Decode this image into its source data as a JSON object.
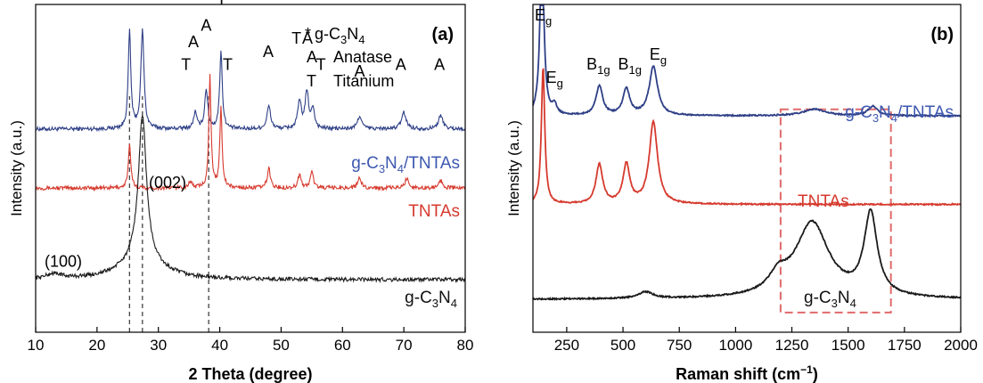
{
  "chart_data": [
    {
      "panel": "(a)",
      "type": "line",
      "xlabel": "2 Theta (degree)",
      "ylabel": "Intensity (a.u.)",
      "xlim": [
        10,
        80
      ],
      "x_ticks": [
        10,
        20,
        30,
        40,
        50,
        60,
        70,
        80
      ],
      "legend": {
        "star_prefix": "*",
        "star_main": "g-C",
        "star_sub1": "3",
        "star_mid": "N",
        "star_sub2": "4",
        "a_symbol": "A",
        "a_label": "Anatase",
        "t_symbol": "T",
        "t_label": "Titanium"
      },
      "series": [
        {
          "name": "g-C3N4/TNTAs",
          "label_parts": [
            "g-C",
            "3",
            "N",
            "4",
            "/TNTAs"
          ],
          "color": "#2e3f86",
          "label_color": "#3d58b0",
          "baseline": 0.62,
          "peaks": [
            [
              25.3,
              0.3,
              0.25
            ],
            [
              27.4,
              0.3,
              0.3
            ],
            [
              36.0,
              0.05,
              0.3
            ],
            [
              37.8,
              0.12,
              0.3
            ],
            [
              40.2,
              0.24,
              0.25
            ],
            [
              48.0,
              0.07,
              0.35
            ],
            [
              53.0,
              0.08,
              0.35
            ],
            [
              54.2,
              0.11,
              0.35
            ],
            [
              55.2,
              0.06,
              0.3
            ],
            [
              62.8,
              0.04,
              0.4
            ],
            [
              70.0,
              0.05,
              0.45
            ],
            [
              76.0,
              0.04,
              0.45
            ]
          ]
        },
        {
          "name": "TNTAs",
          "label_parts": [
            "TNTAs"
          ],
          "color": "#d63a2e",
          "label_color": "#d63a2e",
          "baseline": 0.44,
          "peaks": [
            [
              25.3,
              0.13,
              0.25
            ],
            [
              35.2,
              0.02,
              0.3
            ],
            [
              38.4,
              0.34,
              0.22
            ],
            [
              40.2,
              0.25,
              0.22
            ],
            [
              48.0,
              0.06,
              0.3
            ],
            [
              53.0,
              0.04,
              0.3
            ],
            [
              55.0,
              0.05,
              0.3
            ],
            [
              62.8,
              0.03,
              0.35
            ],
            [
              70.5,
              0.03,
              0.35
            ],
            [
              76.0,
              0.025,
              0.35
            ]
          ]
        },
        {
          "name": "g-C3N4",
          "label_parts": [
            "g-C",
            "3",
            "N",
            "4"
          ],
          "color": "#1a1a1a",
          "label_color": "#111111",
          "baseline": 0.16,
          "peaks": [
            [
              13.0,
              0.015,
              1.5
            ],
            [
              27.4,
              0.44,
              0.8
            ],
            [
              27.2,
              0.06,
              4.0
            ]
          ]
        }
      ],
      "peak_labels": [
        {
          "text": "A",
          "x": 24.6,
          "y": 1.08
        },
        {
          "text": "*",
          "x": 27.3,
          "y": 1.08
        },
        {
          "text": "T",
          "x": 34.5,
          "y": 0.8
        },
        {
          "text": "A",
          "x": 35.7,
          "y": 0.87
        },
        {
          "text": "A",
          "x": 37.8,
          "y": 0.92
        },
        {
          "text": "T",
          "x": 40.3,
          "y": 1.0
        },
        {
          "text": "T",
          "x": 41.3,
          "y": 0.8
        },
        {
          "text": "A",
          "x": 47.9,
          "y": 0.84
        },
        {
          "text": "T",
          "x": 52.5,
          "y": 0.88
        },
        {
          "text": "A",
          "x": 54.3,
          "y": 0.88
        },
        {
          "text": "T",
          "x": 56.5,
          "y": 0.8
        },
        {
          "text": "A",
          "x": 62.8,
          "y": 0.78
        },
        {
          "text": "A",
          "x": 69.5,
          "y": 0.8
        },
        {
          "text": "A",
          "x": 75.8,
          "y": 0.8
        }
      ],
      "annotations": [
        {
          "text": "(100)",
          "x": 14.5,
          "y": 0.2
        },
        {
          "text": "(002)",
          "x": 31.5,
          "y": 0.44
        }
      ],
      "dashed_lines": [
        25.3,
        27.4,
        38.2
      ]
    },
    {
      "panel": "(b)",
      "type": "line",
      "xlabel_main": "Raman shift (cm",
      "xlabel_sup": "−1",
      "xlabel_close": ")",
      "ylabel": "Intensity (a.u.)",
      "xlim": [
        100,
        2000
      ],
      "x_ticks": [
        250,
        500,
        750,
        1000,
        1250,
        1500,
        1750,
        2000
      ],
      "series": [
        {
          "name": "g-C3N4/TNTAs",
          "label_parts": [
            "g-C",
            "3",
            "N",
            "4",
            "/TNTAs"
          ],
          "color": "#2e3f86",
          "label_color": "#3d58b0",
          "baseline": 0.66,
          "peaks": [
            [
              140,
              0.55,
              10
            ],
            [
              195,
              0.03,
              12
            ],
            [
              395,
              0.09,
              18
            ],
            [
              515,
              0.08,
              18
            ],
            [
              635,
              0.15,
              22
            ],
            [
              1350,
              0.02,
              60
            ],
            [
              1610,
              0.03,
              25
            ]
          ]
        },
        {
          "name": "TNTAs",
          "label_parts": [
            "TNTAs"
          ],
          "color": "#d63a2e",
          "label_color": "#d63a2e",
          "baseline": 0.39,
          "peaks": [
            [
              145,
              0.42,
              9
            ],
            [
              395,
              0.12,
              18
            ],
            [
              515,
              0.12,
              18
            ],
            [
              635,
              0.25,
              22
            ]
          ]
        },
        {
          "name": "g-C3N4",
          "label_parts": [
            "g-C",
            "3",
            "N",
            "4"
          ],
          "color": "#1a1a1a",
          "label_color": "#111111",
          "baseline": 0.1,
          "peaks": [
            [
              1340,
              0.23,
              90
            ],
            [
              1600,
              0.25,
              35
            ],
            [
              600,
              0.02,
              40
            ],
            [
              1190,
              0.05,
              50
            ]
          ]
        }
      ],
      "mode_labels": [
        {
          "main": "E",
          "sub": "g",
          "x": 100,
          "y": 1.0
        },
        {
          "main": "E",
          "sub": "g",
          "x": 150,
          "y": 0.81
        },
        {
          "main": "B",
          "sub": "1g",
          "x": 330,
          "y": 0.85
        },
        {
          "main": "B",
          "sub": "1g",
          "x": 470,
          "y": 0.85
        },
        {
          "main": "E",
          "sub": "g",
          "x": 610,
          "y": 0.88
        }
      ],
      "highlight_box": {
        "x0": 1200,
        "x1": 1690,
        "y0": 0.06,
        "y1": 0.68,
        "color": "#e06a6a"
      }
    }
  ]
}
